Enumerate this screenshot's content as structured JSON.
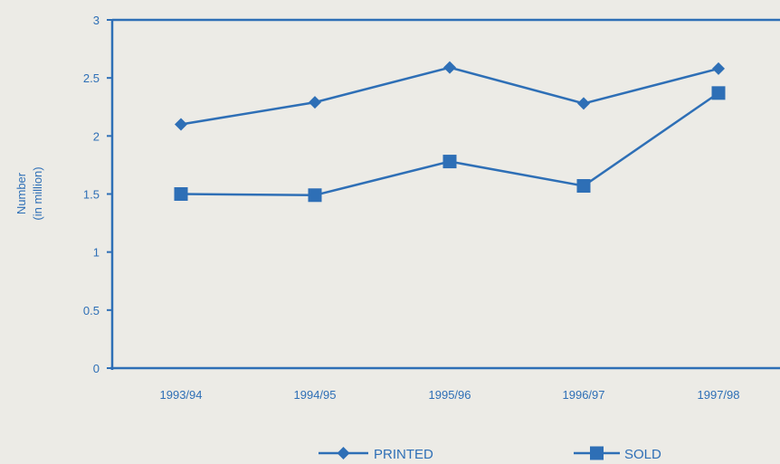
{
  "chart_data": {
    "type": "line",
    "categories": [
      "1993/94",
      "1994/95",
      "1995/96",
      "1996/97",
      "1997/98"
    ],
    "series": [
      {
        "name": "PRINTED",
        "values": [
          2.1,
          2.29,
          2.59,
          2.28,
          2.58
        ],
        "marker": "diamond"
      },
      {
        "name": "SOLD",
        "values": [
          1.5,
          1.49,
          1.78,
          1.57,
          2.37
        ],
        "marker": "square"
      }
    ],
    "ylabel_line1": "Number",
    "ylabel_line2": "(in million)",
    "ylim": [
      0,
      3
    ],
    "yticks": [
      "0",
      "0.5",
      "1",
      "1.5",
      "2",
      "2.5",
      "3"
    ],
    "grid": false,
    "legend_position": "bottom",
    "colors": {
      "line": "#2e6fb6",
      "background": "#ecebe6"
    }
  }
}
